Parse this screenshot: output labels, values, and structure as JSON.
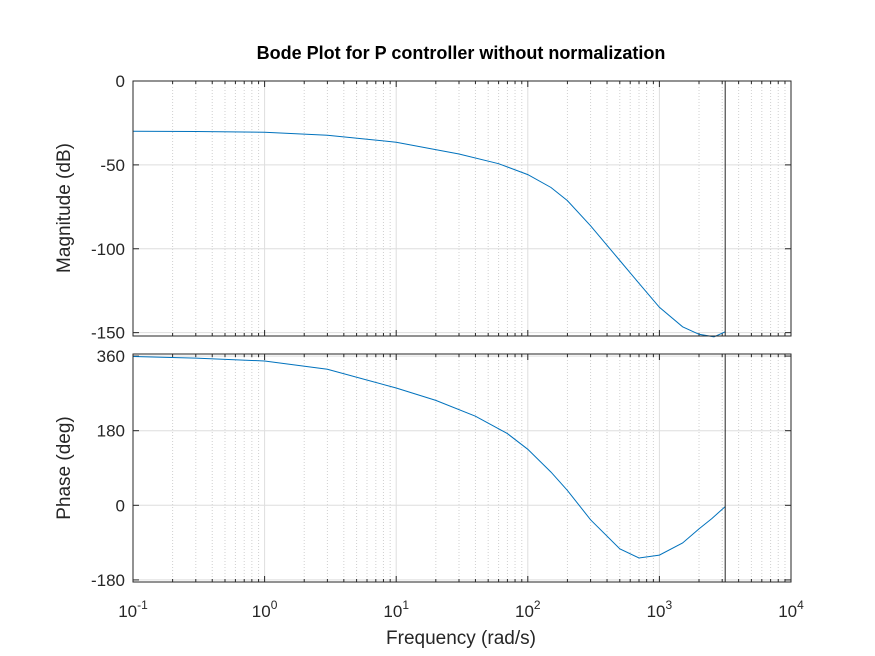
{
  "chart_data": {
    "type": "line",
    "title": "Bode Plot for P controller without normalization",
    "xlabel": "Frequency  (rad/s)",
    "x_scale": "log",
    "xlim": [
      0.1,
      10000
    ],
    "x_ticks": [
      {
        "value": 0.1,
        "base": "10",
        "exp": "-1"
      },
      {
        "value": 1,
        "base": "10",
        "exp": "0"
      },
      {
        "value": 10,
        "base": "10",
        "exp": "1"
      },
      {
        "value": 100,
        "base": "10",
        "exp": "2"
      },
      {
        "value": 1000,
        "base": "10",
        "exp": "3"
      },
      {
        "value": 10000,
        "base": "10",
        "exp": "4"
      }
    ],
    "grid": "on (major and minor)",
    "vertical_line_x": 3162,
    "panels": [
      {
        "ylabel": "Magnitude (dB)",
        "ylim": [
          -152,
          0
        ],
        "y_ticks": [
          0,
          -50,
          -100,
          -150
        ],
        "series": {
          "x": [
            0.1,
            0.3,
            1,
            3,
            10,
            30,
            60,
            100,
            150,
            200,
            300,
            500,
            700,
            1000,
            1500,
            2000,
            2600,
            3162
          ],
          "y": [
            -30,
            -30.1,
            -30.5,
            -32.3,
            -36.5,
            -43.5,
            -49.3,
            -55.8,
            -63.5,
            -71.3,
            -86.3,
            -107,
            -120.6,
            -134.9,
            -146.5,
            -151,
            -152.5,
            -149.5
          ]
        }
      },
      {
        "ylabel": "Phase (deg)",
        "ylim": [
          -185,
          365
        ],
        "y_ticks": [
          360,
          180,
          0,
          -180
        ],
        "series": {
          "x": [
            0.1,
            0.3,
            1,
            3,
            10,
            20,
            40,
            70,
            100,
            150,
            200,
            300,
            500,
            700,
            1000,
            1500,
            2000,
            2500,
            3162
          ],
          "y": [
            359,
            355,
            348,
            328,
            283,
            253,
            215,
            173,
            135,
            80,
            36,
            -35,
            -105,
            -127,
            -120,
            -91,
            -57,
            -32,
            -3
          ]
        }
      }
    ]
  }
}
